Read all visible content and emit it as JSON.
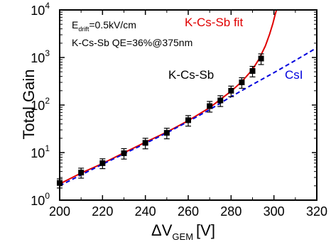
{
  "chart_data": {
    "type": "scatter",
    "title": "",
    "xlabel": {
      "main": "ΔV",
      "sub": "GEM",
      "unit": "[V]"
    },
    "ylabel": "Total Gain",
    "xlim": [
      200,
      320
    ],
    "ylim": [
      1,
      10000
    ],
    "yscale": "log",
    "grid": false,
    "x_ticks": [
      "200",
      "220",
      "240",
      "260",
      "280",
      "300",
      "320"
    ],
    "y_ticks": [
      {
        "base": "10",
        "exp": "0"
      },
      {
        "base": "10",
        "exp": "1"
      },
      {
        "base": "10",
        "exp": "2"
      },
      {
        "base": "10",
        "exp": "3"
      },
      {
        "base": "10",
        "exp": "4"
      }
    ],
    "annotations": {
      "edrift_main": "E",
      "edrift_sub": "drift",
      "edrift_value": "=0.5kV/cm",
      "qe": "K-Cs-Sb QE=36%@375nm",
      "kcssb_label": "K-Cs-Sb"
    },
    "series": [
      {
        "name": "K-Cs-Sb",
        "kind": "points",
        "color": "#000000",
        "x": [
          200,
          210,
          220,
          230,
          240,
          250,
          260,
          270,
          275,
          280,
          285,
          290,
          294
        ],
        "y": [
          2.3,
          3.8,
          6.0,
          9.7,
          16,
          26,
          48,
          95,
          125,
          200,
          300,
          520,
          950
        ],
        "err_low": [
          0.5,
          0.9,
          1.4,
          2.4,
          4,
          6.5,
          12,
          24,
          32,
          50,
          75,
          130,
          240
        ],
        "err_high": [
          0.5,
          0.9,
          1.4,
          2.4,
          4,
          6.5,
          12,
          24,
          32,
          50,
          75,
          130,
          240
        ]
      },
      {
        "name": "K-Cs-Sb fit",
        "kind": "line",
        "color": "#e00000",
        "x": [
          200,
          210,
          220,
          230,
          240,
          250,
          260,
          270,
          280,
          285,
          290,
          293,
          296,
          298,
          299.5,
          300.5,
          301.2
        ],
        "y": [
          2.2,
          3.7,
          5.9,
          9.9,
          16.5,
          27,
          47,
          88,
          195,
          310,
          560,
          920,
          1750,
          3100,
          5200,
          7800,
          10000
        ]
      },
      {
        "name": "CsI",
        "kind": "line",
        "dash": true,
        "color": "#0000dd",
        "x": [
          200,
          210,
          220,
          230,
          240,
          250,
          260,
          270,
          280,
          290,
          300,
          310,
          320
        ],
        "y": [
          2.0,
          3.4,
          5.7,
          9.4,
          15.6,
          26,
          45,
          80,
          150,
          270,
          480,
          870,
          1600
        ]
      }
    ],
    "legend": "inline labels"
  }
}
